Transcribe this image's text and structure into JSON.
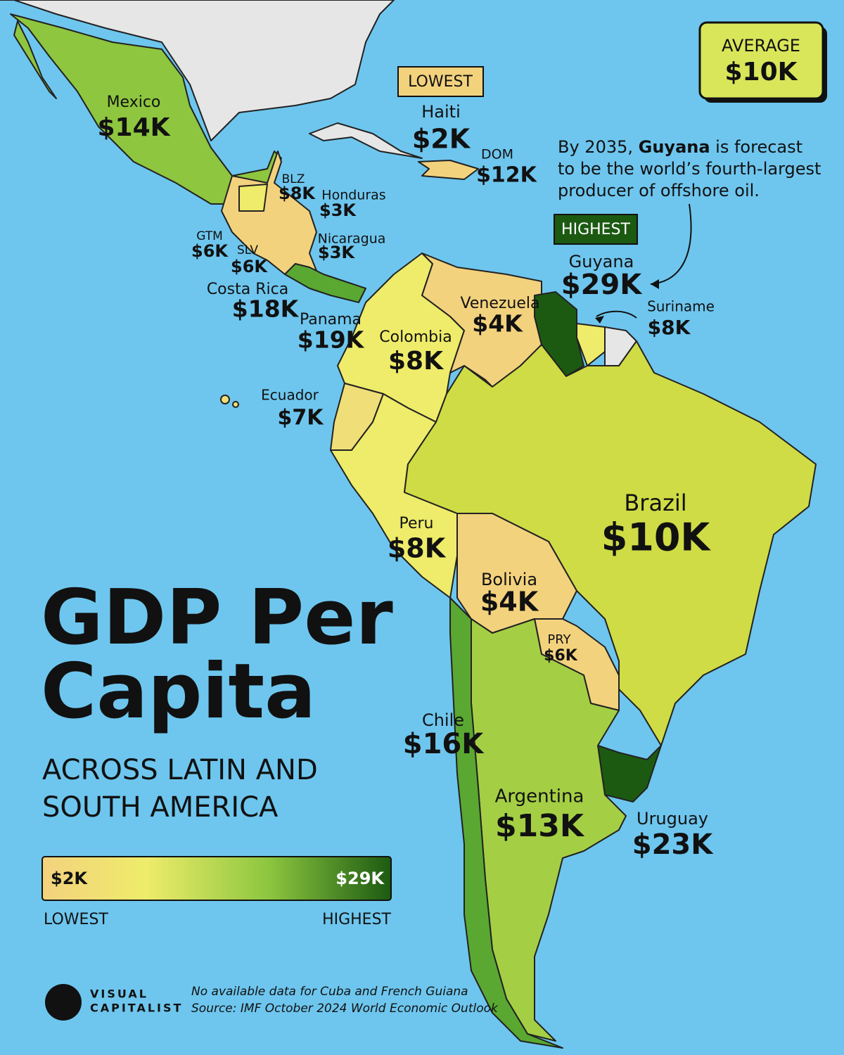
{
  "header": {
    "title_lines": [
      "GDP Per",
      "Capita"
    ],
    "subtitle_lines": [
      "ACROSS LATIN AND",
      "SOUTH AMERICA"
    ]
  },
  "average": {
    "label": "AVERAGE",
    "value": "$10K"
  },
  "badges": {
    "lowest": "LOWEST",
    "highest": "HIGHEST"
  },
  "annotation": {
    "lines": [
      [
        "By 2035, ",
        "Guyana",
        " is forecast"
      ],
      [
        "to be the world’s fourth-largest"
      ],
      [
        "producer of offshore oil."
      ]
    ]
  },
  "countries": [
    {
      "name": "Mexico",
      "value": "$14K"
    },
    {
      "name": "Haiti",
      "value": "$2K"
    },
    {
      "name": "DOM",
      "value": "$12K"
    },
    {
      "name": "BLZ",
      "value": "$8K"
    },
    {
      "name": "Honduras",
      "value": "$3K"
    },
    {
      "name": "GTM",
      "value": "$6K"
    },
    {
      "name": "SLV",
      "value": "$6K"
    },
    {
      "name": "Nicaragua",
      "value": "$3K"
    },
    {
      "name": "Costa Rica",
      "value": "$18K"
    },
    {
      "name": "Panama",
      "value": "$19K"
    },
    {
      "name": "Colombia",
      "value": "$8K"
    },
    {
      "name": "Venezuela",
      "value": "$4K"
    },
    {
      "name": "Guyana",
      "value": "$29K"
    },
    {
      "name": "Suriname",
      "value": "$8K"
    },
    {
      "name": "Ecuador",
      "value": "$7K"
    },
    {
      "name": "Peru",
      "value": "$8K"
    },
    {
      "name": "Bolivia",
      "value": "$4K"
    },
    {
      "name": "PRY",
      "value": "$6K"
    },
    {
      "name": "Brazil",
      "value": "$10K"
    },
    {
      "name": "Argentina",
      "value": "$13K"
    },
    {
      "name": "Uruguay",
      "value": "$23K"
    },
    {
      "name": "Chile",
      "value": "$16K"
    }
  ],
  "legend": {
    "min": "$2K",
    "max": "$29K",
    "low_label": "LOWEST",
    "high_label": "HIGHEST"
  },
  "footnote": {
    "lines": [
      "No available data for Cuba and French Guiana",
      "Source: IMF October 2024 World Economic Outlook"
    ]
  },
  "logo": {
    "lines": [
      "VISUAL",
      "CAPITALIST"
    ]
  }
}
